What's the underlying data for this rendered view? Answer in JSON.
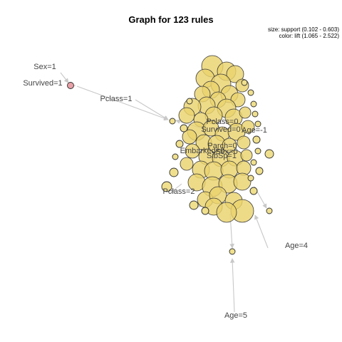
{
  "title": "Graph for 123 rules",
  "legend": {
    "size": "size: support (0.102 - 0.603)",
    "color": "color: lift (1.065 - 2.522)"
  },
  "colors": {
    "node_fill": "#ead36e",
    "node_fill_alt": "#f0e08e",
    "special_node_fill": "#e8a0a6",
    "edge": "#c8c8c8",
    "label": "#444444"
  },
  "item_labels": [
    "Sex=1",
    "Survived=1",
    "Pclass=1",
    "Pclass=0",
    "Survived=0",
    "Age=-1",
    "Parch=0",
    "Embarked=0",
    "Sex=0",
    "SibSp=1",
    "Pclass=2",
    "Age=4",
    "Age=5"
  ]
}
